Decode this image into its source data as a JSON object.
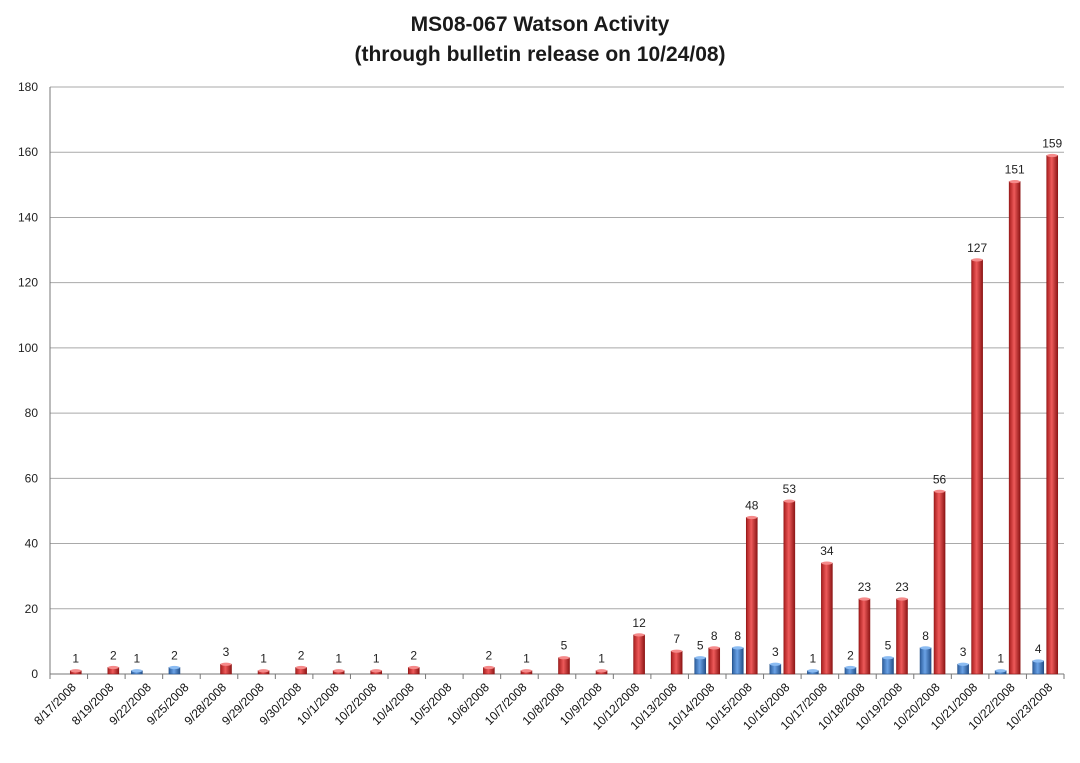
{
  "chart_data": {
    "type": "bar",
    "title": "MS08-067 Watson Activity",
    "subtitle": "(through  bulletin release on 10/24/08)",
    "xlabel": "",
    "ylabel": "",
    "ylim": [
      0,
      180
    ],
    "yticks": [
      0,
      20,
      40,
      60,
      80,
      100,
      120,
      140,
      160,
      180
    ],
    "grid": true,
    "legend": "none",
    "categories": [
      "8/17/2008",
      "8/19/2008",
      "9/22/2008",
      "9/25/2008",
      "9/28/2008",
      "9/29/2008",
      "9/30/2008",
      "10/1/2008",
      "10/2/2008",
      "10/4/2008",
      "10/5/2008",
      "10/6/2008",
      "10/7/2008",
      "10/8/2008",
      "10/9/2008",
      "10/12/2008",
      "10/13/2008",
      "10/14/2008",
      "10/15/2008",
      "10/16/2008",
      "10/17/2008",
      "10/18/2008",
      "10/19/2008",
      "10/20/2008",
      "10/21/2008",
      "10/22/2008",
      "10/23/2008"
    ],
    "series": [
      {
        "color": "#3f7fd0",
        "values": [
          null,
          null,
          1,
          2,
          null,
          null,
          null,
          null,
          null,
          null,
          null,
          null,
          null,
          null,
          null,
          null,
          null,
          5,
          8,
          3,
          1,
          2,
          5,
          8,
          3,
          1,
          4
        ]
      },
      {
        "color": "#d63a3a",
        "values": [
          1,
          2,
          null,
          null,
          3,
          1,
          2,
          1,
          1,
          2,
          null,
          2,
          1,
          5,
          1,
          12,
          7,
          8,
          48,
          53,
          34,
          23,
          23,
          56,
          127,
          151,
          159
        ]
      }
    ]
  }
}
